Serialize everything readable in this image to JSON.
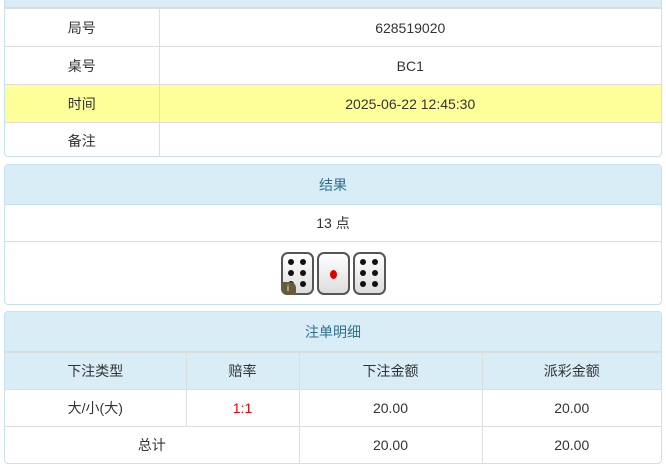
{
  "info": {
    "rows": [
      {
        "label": "局号",
        "value": "628519020"
      },
      {
        "label": "桌号",
        "value": "BC1"
      },
      {
        "label": "时间",
        "value": "2025-06-22 12:45:30"
      },
      {
        "label": "备注",
        "value": ""
      }
    ]
  },
  "result": {
    "title": "结果",
    "points": "13 点",
    "dice": [
      6,
      1,
      6
    ],
    "badge": "i"
  },
  "bets": {
    "title": "注单明细",
    "headers": [
      "下注类型",
      "赔率",
      "下注金额",
      "派彩金额"
    ],
    "rows": [
      {
        "type": "大/小(大)",
        "odds": "1:1",
        "amount": "20.00",
        "payout": "20.00"
      }
    ],
    "total": {
      "label": "总计",
      "amount": "20.00",
      "payout": "20.00"
    }
  },
  "colors": {
    "header_bg": "#d9edf7",
    "highlight": "#ffff99",
    "odds": "#ee0000"
  }
}
